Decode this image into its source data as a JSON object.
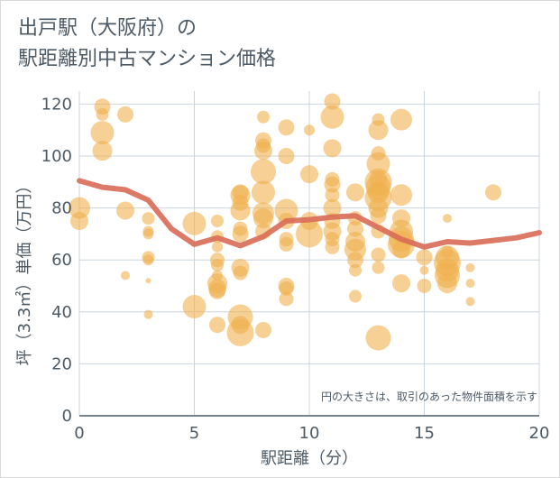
{
  "header": {
    "title_line1": "出戸駅（大阪府）の",
    "title_line2": "駅距離別中古マンション価格"
  },
  "chart_data": {
    "type": "scatter",
    "title": "出戸駅（大阪府）の駅距離別中古マンション価格",
    "xlabel": "駅距離（分）",
    "ylabel": "坪（3.3㎡）単価（万円）",
    "xlim": [
      0,
      20
    ],
    "ylim": [
      0,
      125
    ],
    "x_ticks": [
      0,
      5,
      10,
      15,
      20
    ],
    "y_ticks": [
      0,
      20,
      40,
      60,
      80,
      100,
      120
    ],
    "grid": true,
    "annotation": "円の大きさは、取引のあった物件面積を示す",
    "colors": {
      "bubble": "#f0b14e",
      "trend": "#d96b57",
      "grid": "#c8d4e0",
      "text": "#4c5a66"
    },
    "points": [
      {
        "x": 0,
        "y": 80,
        "size": 12
      },
      {
        "x": 0,
        "y": 75,
        "size": 10
      },
      {
        "x": 1,
        "y": 119,
        "size": 9
      },
      {
        "x": 1,
        "y": 116,
        "size": 7
      },
      {
        "x": 1,
        "y": 109,
        "size": 13
      },
      {
        "x": 1,
        "y": 102,
        "size": 11
      },
      {
        "x": 2,
        "y": 116,
        "size": 9
      },
      {
        "x": 2,
        "y": 79,
        "size": 10
      },
      {
        "x": 2,
        "y": 54,
        "size": 5
      },
      {
        "x": 3,
        "y": 76,
        "size": 7
      },
      {
        "x": 3,
        "y": 71,
        "size": 6
      },
      {
        "x": 3,
        "y": 70,
        "size": 6
      },
      {
        "x": 3,
        "y": 61,
        "size": 7
      },
      {
        "x": 3,
        "y": 60,
        "size": 6
      },
      {
        "x": 3,
        "y": 52,
        "size": 3
      },
      {
        "x": 3,
        "y": 39,
        "size": 5
      },
      {
        "x": 5,
        "y": 74,
        "size": 13
      },
      {
        "x": 5,
        "y": 42,
        "size": 13
      },
      {
        "x": 6,
        "y": 75,
        "size": 7
      },
      {
        "x": 6,
        "y": 69,
        "size": 7
      },
      {
        "x": 6,
        "y": 65,
        "size": 6
      },
      {
        "x": 6,
        "y": 60,
        "size": 8
      },
      {
        "x": 6,
        "y": 58,
        "size": 7
      },
      {
        "x": 6,
        "y": 54,
        "size": 6
      },
      {
        "x": 6,
        "y": 51,
        "size": 11
      },
      {
        "x": 6,
        "y": 49,
        "size": 10
      },
      {
        "x": 6,
        "y": 48,
        "size": 9
      },
      {
        "x": 6,
        "y": 35,
        "size": 9
      },
      {
        "x": 7,
        "y": 86,
        "size": 9
      },
      {
        "x": 7,
        "y": 85,
        "size": 11
      },
      {
        "x": 7,
        "y": 82,
        "size": 9
      },
      {
        "x": 7,
        "y": 79,
        "size": 11
      },
      {
        "x": 7,
        "y": 72,
        "size": 8
      },
      {
        "x": 7,
        "y": 70,
        "size": 9
      },
      {
        "x": 7,
        "y": 57,
        "size": 10
      },
      {
        "x": 7,
        "y": 55,
        "size": 8
      },
      {
        "x": 7,
        "y": 38,
        "size": 14
      },
      {
        "x": 7,
        "y": 32,
        "size": 15
      },
      {
        "x": 7,
        "y": 35,
        "size": 10
      },
      {
        "x": 8,
        "y": 115,
        "size": 7
      },
      {
        "x": 8,
        "y": 106,
        "size": 9
      },
      {
        "x": 8,
        "y": 104,
        "size": 8
      },
      {
        "x": 8,
        "y": 102,
        "size": 10
      },
      {
        "x": 8,
        "y": 94,
        "size": 14
      },
      {
        "x": 8,
        "y": 86,
        "size": 13
      },
      {
        "x": 8,
        "y": 78,
        "size": 12
      },
      {
        "x": 8,
        "y": 76,
        "size": 11
      },
      {
        "x": 8,
        "y": 71,
        "size": 9
      },
      {
        "x": 8,
        "y": 33,
        "size": 9
      },
      {
        "x": 9,
        "y": 111,
        "size": 9
      },
      {
        "x": 9,
        "y": 100,
        "size": 9
      },
      {
        "x": 9,
        "y": 79,
        "size": 13
      },
      {
        "x": 9,
        "y": 75,
        "size": 9
      },
      {
        "x": 9,
        "y": 68,
        "size": 8
      },
      {
        "x": 9,
        "y": 66,
        "size": 8
      },
      {
        "x": 9,
        "y": 50,
        "size": 9
      },
      {
        "x": 9,
        "y": 49,
        "size": 8
      },
      {
        "x": 9,
        "y": 45,
        "size": 8
      },
      {
        "x": 10,
        "y": 110,
        "size": 6
      },
      {
        "x": 10,
        "y": 93,
        "size": 10
      },
      {
        "x": 10,
        "y": 75,
        "size": 10
      },
      {
        "x": 10,
        "y": 70,
        "size": 15
      },
      {
        "x": 11,
        "y": 121,
        "size": 9
      },
      {
        "x": 11,
        "y": 115,
        "size": 13
      },
      {
        "x": 11,
        "y": 103,
        "size": 10
      },
      {
        "x": 11,
        "y": 91,
        "size": 8
      },
      {
        "x": 11,
        "y": 89,
        "size": 9
      },
      {
        "x": 11,
        "y": 85,
        "size": 8
      },
      {
        "x": 11,
        "y": 80,
        "size": 10
      },
      {
        "x": 11,
        "y": 75,
        "size": 9
      },
      {
        "x": 11,
        "y": 71,
        "size": 10
      },
      {
        "x": 11,
        "y": 68,
        "size": 8
      },
      {
        "x": 11,
        "y": 65,
        "size": 8
      },
      {
        "x": 12,
        "y": 86,
        "size": 10
      },
      {
        "x": 12,
        "y": 76,
        "size": 8
      },
      {
        "x": 12,
        "y": 72,
        "size": 9
      },
      {
        "x": 12,
        "y": 67,
        "size": 11
      },
      {
        "x": 12,
        "y": 64,
        "size": 12
      },
      {
        "x": 12,
        "y": 60,
        "size": 9
      },
      {
        "x": 12,
        "y": 56,
        "size": 7
      },
      {
        "x": 12,
        "y": 46,
        "size": 7
      },
      {
        "x": 13,
        "y": 114,
        "size": 7
      },
      {
        "x": 13,
        "y": 110,
        "size": 11
      },
      {
        "x": 13,
        "y": 101,
        "size": 8
      },
      {
        "x": 13,
        "y": 97,
        "size": 13
      },
      {
        "x": 13,
        "y": 91,
        "size": 10
      },
      {
        "x": 13,
        "y": 90,
        "size": 15
      },
      {
        "x": 13,
        "y": 88,
        "size": 14
      },
      {
        "x": 13,
        "y": 86,
        "size": 12
      },
      {
        "x": 13,
        "y": 84,
        "size": 15
      },
      {
        "x": 13,
        "y": 80,
        "size": 11
      },
      {
        "x": 13,
        "y": 77,
        "size": 9
      },
      {
        "x": 13,
        "y": 71,
        "size": 8
      },
      {
        "x": 13,
        "y": 62,
        "size": 8
      },
      {
        "x": 13,
        "y": 57,
        "size": 7
      },
      {
        "x": 13,
        "y": 30,
        "size": 14
      },
      {
        "x": 14,
        "y": 114,
        "size": 12
      },
      {
        "x": 14,
        "y": 85,
        "size": 12
      },
      {
        "x": 14,
        "y": 76,
        "size": 10
      },
      {
        "x": 14,
        "y": 71,
        "size": 13
      },
      {
        "x": 14,
        "y": 68,
        "size": 14
      },
      {
        "x": 14,
        "y": 66,
        "size": 15
      },
      {
        "x": 14,
        "y": 64,
        "size": 10
      },
      {
        "x": 14,
        "y": 51,
        "size": 10
      },
      {
        "x": 15,
        "y": 61,
        "size": 9
      },
      {
        "x": 15,
        "y": 56,
        "size": 5
      },
      {
        "x": 15,
        "y": 50,
        "size": 8
      },
      {
        "x": 16,
        "y": 76,
        "size": 5
      },
      {
        "x": 16,
        "y": 63,
        "size": 7
      },
      {
        "x": 16,
        "y": 61,
        "size": 13
      },
      {
        "x": 16,
        "y": 59,
        "size": 15
      },
      {
        "x": 16,
        "y": 56,
        "size": 13
      },
      {
        "x": 16,
        "y": 54,
        "size": 14
      },
      {
        "x": 16,
        "y": 51,
        "size": 11
      },
      {
        "x": 17,
        "y": 57,
        "size": 5
      },
      {
        "x": 17,
        "y": 51,
        "size": 5
      },
      {
        "x": 17,
        "y": 44,
        "size": 5
      },
      {
        "x": 18,
        "y": 86,
        "size": 9
      }
    ],
    "trend_line": {
      "x": [
        0,
        1,
        2,
        3,
        4,
        5,
        6,
        7,
        8,
        9,
        10,
        11,
        12,
        13,
        14,
        15,
        16,
        17,
        18,
        19,
        20
      ],
      "y": [
        90.5,
        88,
        87,
        83,
        72,
        66,
        68.5,
        65.5,
        69,
        75,
        75.5,
        76.5,
        77,
        72.5,
        68,
        65,
        67,
        66.5,
        67.5,
        68.5,
        70.5
      ]
    }
  }
}
